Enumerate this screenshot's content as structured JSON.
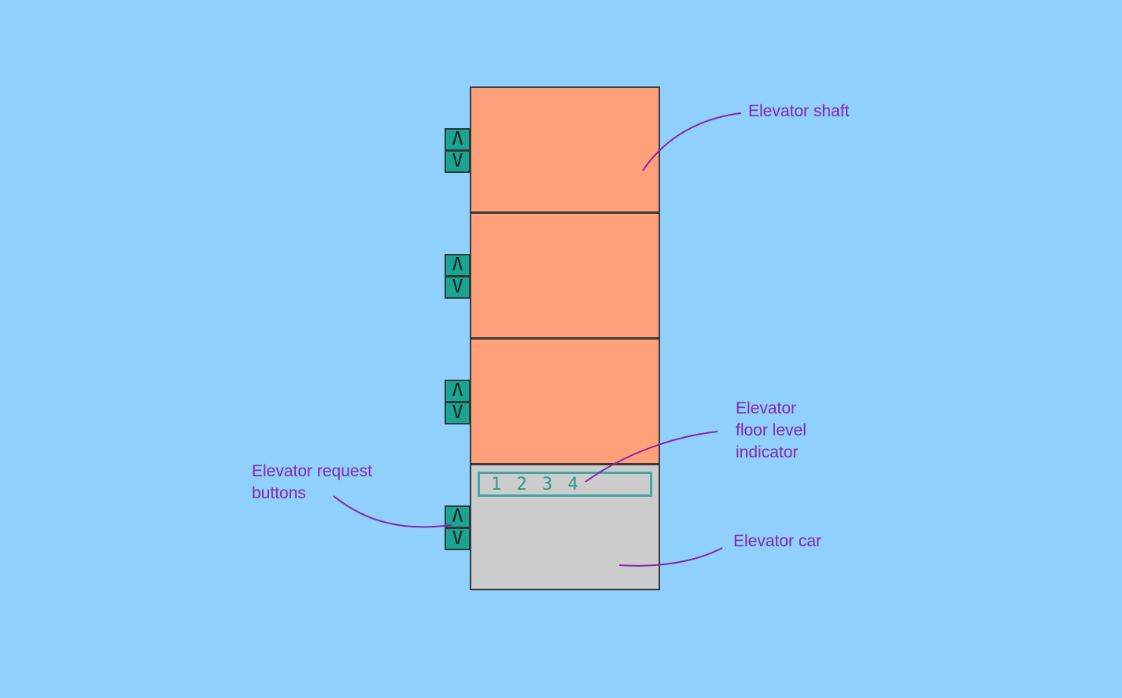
{
  "labels": {
    "shaft": "Elevator shaft",
    "indicator_line1": "Elevator",
    "indicator_line2": "floor level",
    "indicator_line3": "indicator",
    "buttons_line1": "Elevator request",
    "buttons_line2": "buttons",
    "car": "Elevator car"
  },
  "floor_levels": [
    "1",
    "2",
    "3",
    "4"
  ],
  "request_buttons": {
    "up": "Λ",
    "down": "V"
  },
  "colors": {
    "background": "#8fd0fd",
    "shaft_floor": "#ffa07a",
    "car": "#cccccc",
    "button": "#1ca492",
    "indicator": "#40a8a0",
    "annotation": "#8a26a8"
  }
}
